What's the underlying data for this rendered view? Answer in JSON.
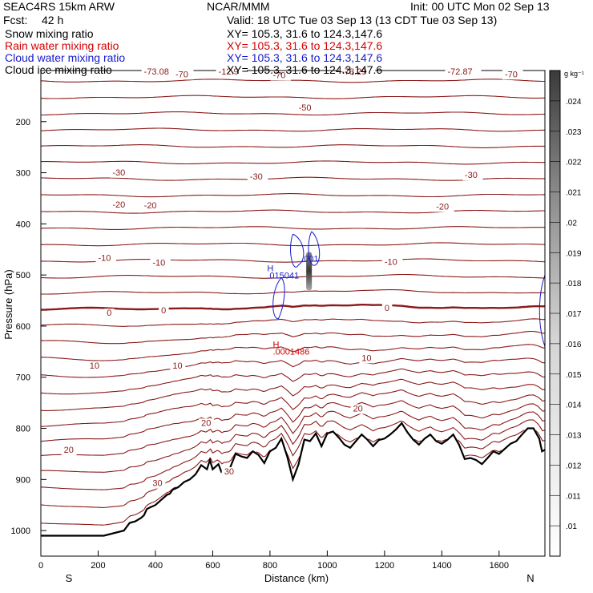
{
  "header": {
    "model": "SEAC4RS 15km ARW",
    "fcst_label": "Fcst:",
    "fcst_value": "42 h",
    "center": "NCAR/MMM",
    "init": "Init: 00 UTC Mon 02 Sep 13",
    "valid": "Valid: 18 UTC Tue 03 Sep 13 (13 CDT Tue 03 Sep 13)",
    "fields": [
      {
        "label": "Snow mixing ratio",
        "color": "#000000",
        "xy": "XY= 105.3, 31.6 to 124.3,147.6"
      },
      {
        "label": "Rain water mixing ratio",
        "color": "#d40000",
        "xy": "XY= 105.3, 31.6 to 124.3,147.6"
      },
      {
        "label": "Cloud water mixing ratio",
        "color": "#1a1acc",
        "xy": "XY= 105.3, 31.6 to 124.3,147.6"
      },
      {
        "label": "Cloud ice mixing ratio",
        "color": "#000000",
        "xy": "XY= 105.3, 31.6 to 124.3,147.6"
      }
    ]
  },
  "chart_data": {
    "type": "cross-section",
    "xlabel": "Distance (km)",
    "ylabel": "Pressure (hPa)",
    "xlim": [
      0,
      1760
    ],
    "ylim": [
      1050,
      100
    ],
    "x_ticks": [
      0,
      200,
      400,
      600,
      800,
      1000,
      1200,
      1400,
      1600
    ],
    "y_ticks": [
      200,
      300,
      400,
      500,
      600,
      700,
      800,
      900,
      1000
    ],
    "x_end_labels": {
      "left": "S",
      "right": "N"
    },
    "colorbar": {
      "unit": "g kg⁻¹",
      "ticks": [
        ".01",
        ".011",
        ".012",
        ".013",
        ".014",
        ".015",
        ".016",
        ".017",
        ".018",
        ".019",
        ".02",
        ".021",
        ".022",
        ".023",
        ".024"
      ]
    },
    "temperature_contour_labels": [
      {
        "x": 360,
        "p": 108,
        "text": "-73.08"
      },
      {
        "x": 470,
        "p": 113,
        "text": "-70"
      },
      {
        "x": 620,
        "p": 108,
        "text": "-12.9"
      },
      {
        "x": 810,
        "p": 115,
        "text": "-70"
      },
      {
        "x": 1050,
        "p": 108,
        "text": "-73.29"
      },
      {
        "x": 1420,
        "p": 108,
        "text": "-72.87"
      },
      {
        "x": 1620,
        "p": 113,
        "text": "-70"
      },
      {
        "x": 900,
        "p": 178,
        "text": "-50"
      },
      {
        "x": 250,
        "p": 305,
        "text": "-30"
      },
      {
        "x": 730,
        "p": 313,
        "text": "-30"
      },
      {
        "x": 1480,
        "p": 310,
        "text": "-30"
      },
      {
        "x": 250,
        "p": 368,
        "text": "-20"
      },
      {
        "x": 360,
        "p": 370,
        "text": "-20"
      },
      {
        "x": 1380,
        "p": 372,
        "text": "-20"
      },
      {
        "x": 200,
        "p": 472,
        "text": "-10"
      },
      {
        "x": 390,
        "p": 482,
        "text": "-10"
      },
      {
        "x": 1200,
        "p": 480,
        "text": "-10"
      },
      {
        "x": 230,
        "p": 580,
        "text": "0"
      },
      {
        "x": 420,
        "p": 575,
        "text": "0"
      },
      {
        "x": 1200,
        "p": 570,
        "text": "0"
      },
      {
        "x": 170,
        "p": 683,
        "text": "10"
      },
      {
        "x": 460,
        "p": 683,
        "text": "10"
      },
      {
        "x": 1120,
        "p": 668,
        "text": "10"
      },
      {
        "x": 560,
        "p": 795,
        "text": "20"
      },
      {
        "x": 1090,
        "p": 767,
        "text": "20"
      },
      {
        "x": 80,
        "p": 848,
        "text": "20"
      },
      {
        "x": 390,
        "p": 913,
        "text": "30"
      },
      {
        "x": 640,
        "p": 890,
        "text": "30"
      }
    ],
    "extremum_labels": [
      {
        "x": 790,
        "p": 493,
        "text": "H",
        "color": "#1a1acc"
      },
      {
        "x": 790,
        "p": 507,
        "text": ".015041",
        "color": "#1a1acc"
      },
      {
        "x": 910,
        "p": 474,
        "text": ".001",
        "color": "#1a1acc"
      },
      {
        "x": 810,
        "p": 642,
        "text": "H",
        "color": "#d40000"
      },
      {
        "x": 810,
        "p": 656,
        "text": ".0001486",
        "color": "#d40000"
      }
    ],
    "series": [
      {
        "name": "",
        "kind": "terrain",
        "x": [
          0,
          220,
          290,
          310,
          330,
          350,
          360,
          370,
          380,
          400,
          420,
          440,
          450,
          460,
          480,
          500,
          520,
          540,
          560,
          580,
          590,
          600,
          620,
          630,
          640,
          660,
          680,
          700,
          720,
          740,
          760,
          780,
          800,
          820,
          840,
          860,
          880,
          900,
          920,
          940,
          960,
          980,
          1000,
          1020,
          1040,
          1060,
          1080,
          1100,
          1120,
          1140,
          1160,
          1180,
          1200,
          1220,
          1240,
          1260,
          1280,
          1300,
          1320,
          1340,
          1360,
          1380,
          1400,
          1420,
          1440,
          1460,
          1480,
          1500,
          1520,
          1540,
          1560,
          1580,
          1600,
          1620,
          1640,
          1660,
          1680,
          1700,
          1720,
          1740,
          1750,
          1760
        ],
        "p": [
          1010,
          1010,
          1000,
          985,
          982,
          975,
          970,
          958,
          955,
          950,
          940,
          930,
          928,
          920,
          915,
          905,
          900,
          890,
          872,
          880,
          862,
          880,
          870,
          885,
          880,
          878,
          850,
          855,
          858,
          845,
          852,
          868,
          845,
          838,
          820,
          855,
          900,
          870,
          822,
          825,
          810,
          835,
          810,
          806,
          818,
          832,
          838,
          825,
          812,
          822,
          835,
          823,
          820,
          812,
          802,
          790,
          808,
          822,
          832,
          820,
          812,
          825,
          830,
          822,
          812,
          832,
          860,
          858,
          862,
          870,
          858,
          845,
          850,
          840,
          830,
          825,
          812,
          800,
          800,
          820,
          845,
          842,
          828,
          795,
          760,
          705,
          700,
          740
        ]
      }
    ]
  }
}
